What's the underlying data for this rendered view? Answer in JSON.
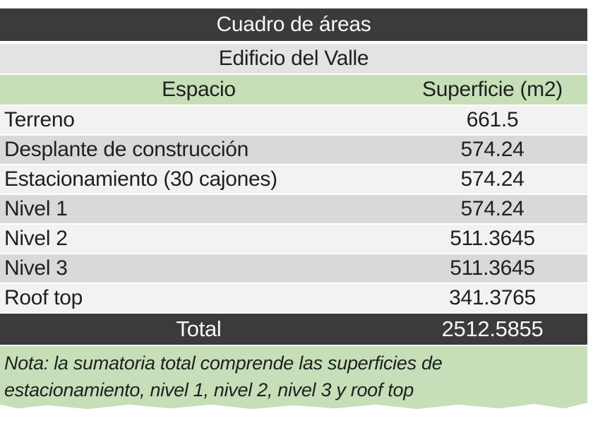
{
  "chart_data": {
    "type": "table",
    "title": "Cuadro de áreas",
    "subtitle": "Edificio del Valle",
    "columns": [
      "Espacio",
      "Superficie (m2)"
    ],
    "rows": [
      {
        "label": "Terreno",
        "value": "661.5"
      },
      {
        "label": "Desplante de construcción",
        "value": "574.24"
      },
      {
        "label": "Estacionamiento (30 cajones)",
        "value": "574.24"
      },
      {
        "label": "Nivel 1",
        "value": "574.24"
      },
      {
        "label": "Nivel 2",
        "value": "511.3645"
      },
      {
        "label": "Nivel 3",
        "value": "511.3645"
      },
      {
        "label": "Roof top",
        "value": "341.3765"
      }
    ],
    "total": {
      "label": "Total",
      "value": "2512.5855"
    },
    "note_lines": [
      "Nota: la sumatoria total comprende las superficies de",
      "estacionamiento, nivel 1, nivel 2, nivel 3 y roof top"
    ]
  },
  "colors": {
    "header_dark": "#3b3b3b",
    "accent_green": "#c6dfb8",
    "subtitle_bg": "#e3e3e3",
    "row_light": "#f2f2f2",
    "row_gray": "#d9d9d9",
    "text_dark": "#1f1f1f",
    "text_light": "#f7f7f7"
  }
}
